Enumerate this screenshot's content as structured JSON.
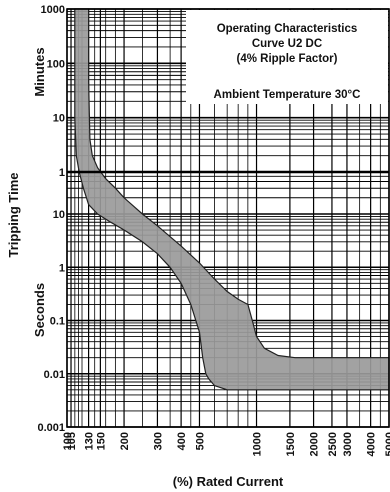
{
  "chart_data": {
    "type": "area",
    "title_lines": [
      "Operating Characteristics",
      "Curve U2 DC",
      "(4% Ripple Factor)"
    ],
    "subtitle": "Ambient Temperature 30°C",
    "xlabel": "(%) Rated Current",
    "ylabel": "Tripping Time",
    "ylabel_minutes": "Minutes",
    "ylabel_seconds": "Seconds",
    "x_scale": "log",
    "xlim": [
      100,
      5000
    ],
    "x_ticks": [
      "100",
      "105",
      "130",
      "150",
      "200",
      "300",
      "400",
      "500",
      "1000",
      "1500",
      "2000",
      "2500",
      "3000",
      "4000",
      "5000"
    ],
    "y_ticks_minutes": [
      "1000",
      "100",
      "10",
      "1"
    ],
    "y_ticks_seconds": [
      "10",
      "1",
      "0.1",
      "0.01",
      "0.001"
    ],
    "y_unit": "seconds",
    "y_scale": "log",
    "ylim": [
      0.001,
      60000
    ],
    "grid": true,
    "band_color": "#9a9a9a",
    "band_edge_color": "#222222",
    "series": [
      {
        "values_x": [
          110,
          110,
          112,
          116,
          122,
          130,
          145,
          170,
          200,
          250,
          300,
          350,
          400,
          450,
          500,
          520,
          540,
          560,
          600,
          700,
          800,
          1000,
          1500,
          2000,
          3000,
          5000
        ],
        "values_y": [
          60000,
          600,
          120,
          60,
          30,
          15,
          10,
          7,
          5,
          3,
          1.8,
          1.0,
          0.5,
          0.2,
          0.06,
          0.02,
          0.01,
          0.008,
          0.006,
          0.005,
          0.005,
          0.005,
          0.005,
          0.005,
          0.005,
          0.005
        ]
      },
      {
        "values_x": [
          130,
          130,
          132,
          136,
          145,
          160,
          180,
          200,
          250,
          300,
          400,
          500,
          600,
          700,
          800,
          900,
          950,
          1000,
          1100,
          1300,
          1600,
          2000,
          3000,
          5000
        ],
        "values_y": [
          60000,
          3000,
          240,
          120,
          72,
          45,
          30,
          20,
          10,
          6,
          2.5,
          1.2,
          0.6,
          0.35,
          0.25,
          0.2,
          0.1,
          0.05,
          0.03,
          0.022,
          0.02,
          0.02,
          0.02,
          0.02
        ]
      }
    ]
  }
}
